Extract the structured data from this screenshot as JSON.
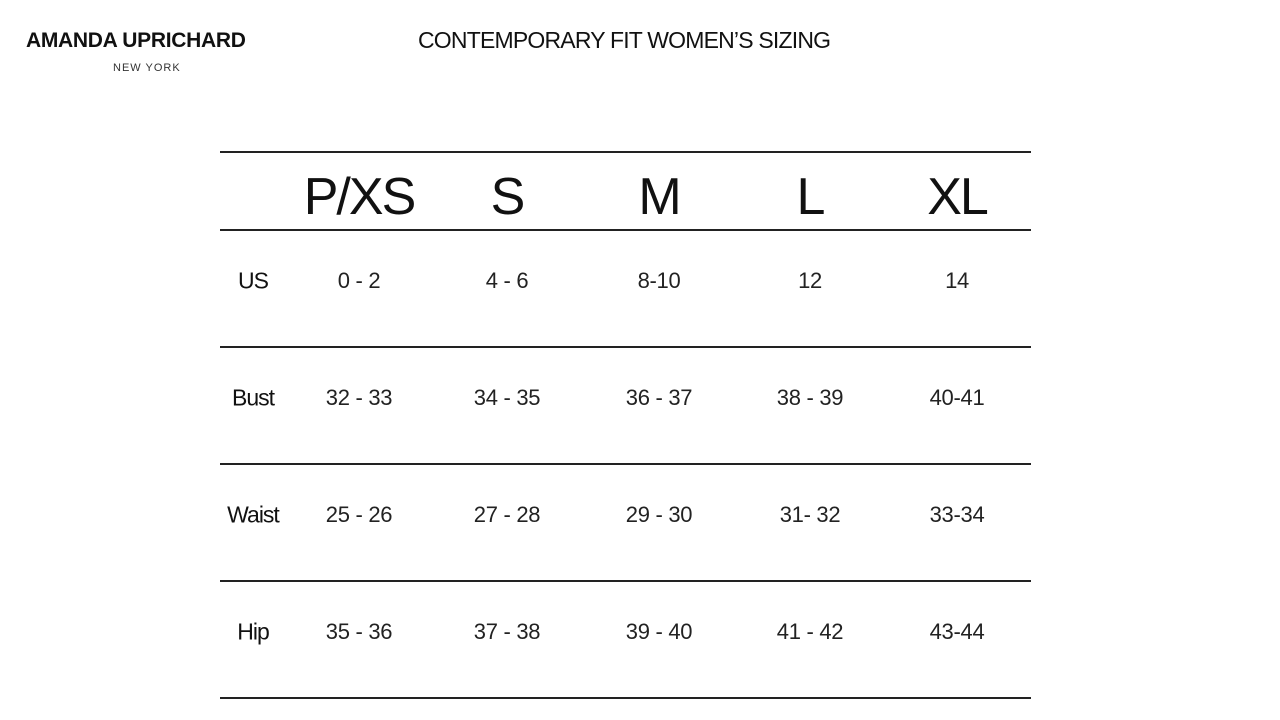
{
  "brand": {
    "name": "AMANDA UPRICHARD",
    "city": "NEW YORK"
  },
  "title": "CONTEMPORARY FIT WOMEN’S SIZING",
  "table": {
    "sizes": [
      "P/XS",
      "S",
      "M",
      "L",
      "XL"
    ],
    "rows": [
      {
        "label": "US",
        "values": [
          "0 - 2",
          "4 - 6",
          "8-10",
          "12",
          "14"
        ]
      },
      {
        "label": "Bust",
        "values": [
          "32 - 33",
          "34 - 35",
          "36 - 37",
          "38 - 39",
          "40-41"
        ]
      },
      {
        "label": "Waist",
        "values": [
          "25 - 26",
          "27 - 28",
          "29 - 30",
          "31- 32",
          "33-34"
        ]
      },
      {
        "label": "Hip",
        "values": [
          "35 - 36",
          "37  - 38",
          "39 - 40",
          "41 - 42",
          "43-44"
        ]
      }
    ]
  }
}
